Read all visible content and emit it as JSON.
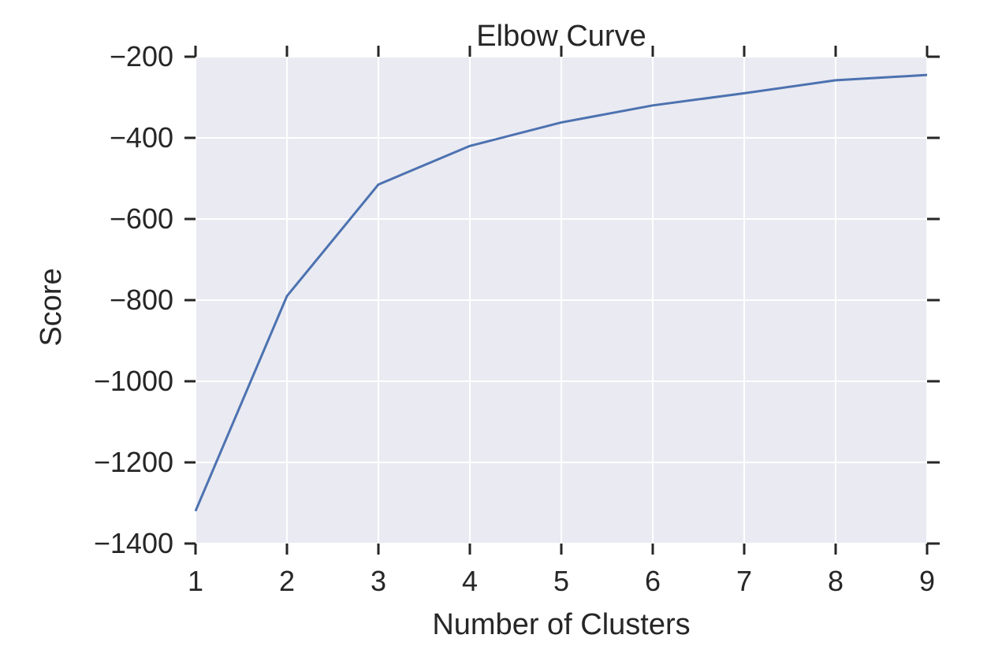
{
  "chart_data": {
    "type": "line",
    "title": "Elbow Curve",
    "xlabel": "Number of Clusters",
    "ylabel": "Score",
    "x": [
      1,
      2,
      3,
      4,
      5,
      6,
      7,
      8,
      9
    ],
    "xticks": [
      "1",
      "2",
      "3",
      "4",
      "5",
      "6",
      "7",
      "8",
      "9"
    ],
    "yticks": [
      "−200",
      "−400",
      "−600",
      "−800",
      "−1000",
      "−1200",
      "−1400"
    ],
    "yticks_values": [
      -200,
      -400,
      -600,
      -800,
      -1000,
      -1200,
      -1400
    ],
    "xlim": [
      1,
      9
    ],
    "ylim": [
      -1400,
      -200
    ],
    "grid": true,
    "series": [
      {
        "values": [
          -1320,
          -790,
          -515,
          -420,
          -362,
          -320,
          -290,
          -258,
          -245
        ]
      }
    ],
    "colors": {
      "line": "#4c72b0",
      "plot_background": "#eaeaf2",
      "grid": "#ffffff",
      "text": "#262626"
    }
  }
}
